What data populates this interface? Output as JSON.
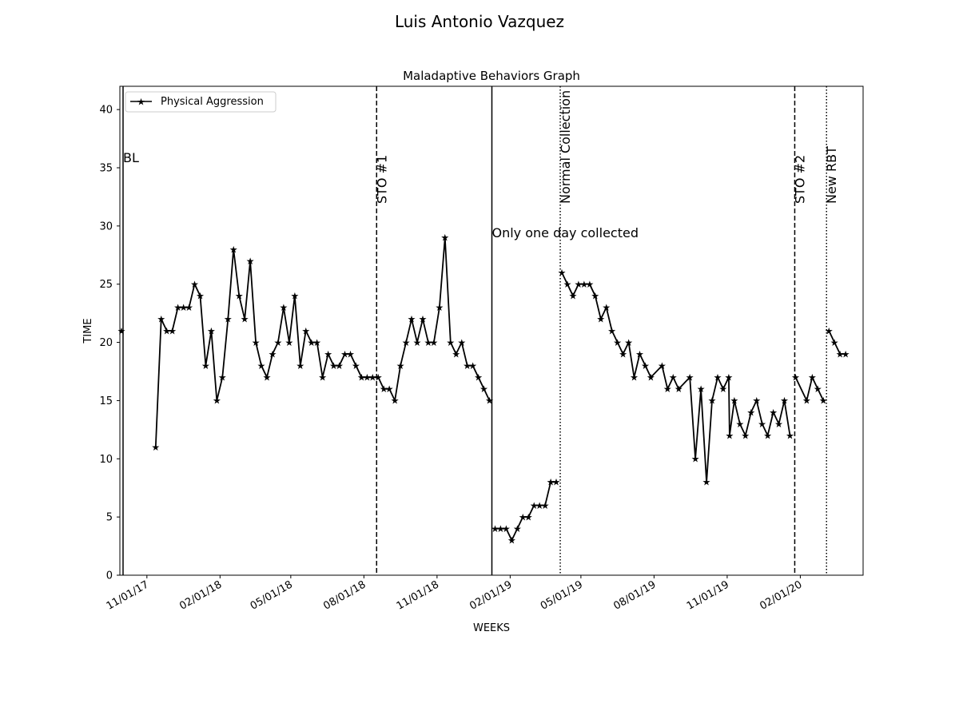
{
  "suptitle": "Luis Antonio  Vazquez",
  "chart_data": {
    "type": "line",
    "title": "Maladaptive Behaviors Graph",
    "xlabel": "WEEKS",
    "ylabel": "TIME",
    "x_axis_type": "date",
    "xlim": [
      "2017-09-28",
      "2020-04-20"
    ],
    "ylim": [
      0,
      42
    ],
    "y_ticks": [
      0,
      5,
      10,
      15,
      20,
      25,
      30,
      35,
      40
    ],
    "x_ticks": [
      {
        "date": "2017-11-01",
        "label": "11/01/17"
      },
      {
        "date": "2018-02-01",
        "label": "02/01/18"
      },
      {
        "date": "2018-05-01",
        "label": "05/01/18"
      },
      {
        "date": "2018-08-01",
        "label": "08/01/18"
      },
      {
        "date": "2018-11-01",
        "label": "11/01/18"
      },
      {
        "date": "2019-02-01",
        "label": "02/01/19"
      },
      {
        "date": "2019-05-01",
        "label": "05/01/19"
      },
      {
        "date": "2019-08-01",
        "label": "08/01/19"
      },
      {
        "date": "2019-11-01",
        "label": "11/01/19"
      },
      {
        "date": "2020-02-01",
        "label": "02/01/20"
      }
    ],
    "grid": false,
    "legend_position": "upper left",
    "series": [
      {
        "name": "Physical Aggression",
        "color": "#000000",
        "marker": "star",
        "segments": [
          [
            [
              "2017-09-30",
              21
            ]
          ],
          [
            [
              "2017-11-12",
              11
            ],
            [
              "2017-11-19",
              22
            ],
            [
              "2017-11-26",
              21
            ],
            [
              "2017-12-03",
              21
            ],
            [
              "2017-12-10",
              23
            ],
            [
              "2017-12-17",
              23
            ],
            [
              "2017-12-24",
              23
            ],
            [
              "2017-12-31",
              25
            ],
            [
              "2018-01-07",
              24
            ],
            [
              "2018-01-14",
              18
            ],
            [
              "2018-01-21",
              21
            ],
            [
              "2018-01-28",
              15
            ],
            [
              "2018-02-04",
              17
            ],
            [
              "2018-02-11",
              22
            ],
            [
              "2018-02-18",
              28
            ],
            [
              "2018-02-25",
              24
            ],
            [
              "2018-03-04",
              22
            ],
            [
              "2018-03-11",
              27
            ],
            [
              "2018-03-18",
              20
            ],
            [
              "2018-03-25",
              18
            ],
            [
              "2018-04-01",
              17
            ],
            [
              "2018-04-08",
              19
            ],
            [
              "2018-04-15",
              20
            ],
            [
              "2018-04-22",
              23
            ],
            [
              "2018-04-29",
              20
            ],
            [
              "2018-05-06",
              24
            ],
            [
              "2018-05-13",
              18
            ],
            [
              "2018-05-20",
              21
            ],
            [
              "2018-05-27",
              20
            ],
            [
              "2018-06-03",
              20
            ],
            [
              "2018-06-10",
              17
            ],
            [
              "2018-06-17",
              19
            ],
            [
              "2018-06-24",
              18
            ],
            [
              "2018-07-01",
              18
            ],
            [
              "2018-07-08",
              19
            ],
            [
              "2018-07-15",
              19
            ],
            [
              "2018-07-22",
              18
            ],
            [
              "2018-07-29",
              17
            ],
            [
              "2018-08-05",
              17
            ],
            [
              "2018-08-12",
              17
            ],
            [
              "2018-08-19",
              17
            ],
            [
              "2018-08-26",
              16
            ],
            [
              "2018-09-02",
              16
            ],
            [
              "2018-09-09",
              15
            ],
            [
              "2018-09-16",
              18
            ],
            [
              "2018-09-23",
              20
            ],
            [
              "2018-09-30",
              22
            ],
            [
              "2018-10-07",
              20
            ],
            [
              "2018-10-14",
              22
            ],
            [
              "2018-10-21",
              20
            ],
            [
              "2018-10-28",
              20
            ],
            [
              "2018-11-04",
              23
            ],
            [
              "2018-11-11",
              29
            ],
            [
              "2018-11-18",
              20
            ],
            [
              "2018-11-25",
              19
            ],
            [
              "2018-12-02",
              20
            ],
            [
              "2018-12-09",
              18
            ],
            [
              "2018-12-16",
              18
            ],
            [
              "2018-12-23",
              17
            ],
            [
              "2018-12-30",
              16
            ],
            [
              "2019-01-06",
              15
            ]
          ],
          [
            [
              "2019-01-13",
              4
            ],
            [
              "2019-01-20",
              4
            ],
            [
              "2019-01-27",
              4
            ],
            [
              "2019-02-03",
              3
            ],
            [
              "2019-02-10",
              4
            ],
            [
              "2019-02-17",
              5
            ],
            [
              "2019-02-24",
              5
            ],
            [
              "2019-03-03",
              6
            ],
            [
              "2019-03-10",
              6
            ],
            [
              "2019-03-17",
              6
            ],
            [
              "2019-03-24",
              8
            ],
            [
              "2019-03-31",
              8
            ]
          ],
          [
            [
              "2019-04-07",
              26
            ],
            [
              "2019-04-14",
              25
            ],
            [
              "2019-04-21",
              24
            ],
            [
              "2019-04-28",
              25
            ],
            [
              "2019-05-05",
              25
            ],
            [
              "2019-05-12",
              25
            ],
            [
              "2019-05-19",
              24
            ],
            [
              "2019-05-26",
              22
            ],
            [
              "2019-06-02",
              23
            ],
            [
              "2019-06-09",
              21
            ],
            [
              "2019-06-16",
              20
            ],
            [
              "2019-06-23",
              19
            ],
            [
              "2019-06-30",
              20
            ],
            [
              "2019-07-07",
              17
            ],
            [
              "2019-07-14",
              19
            ],
            [
              "2019-07-21",
              18
            ],
            [
              "2019-07-28",
              17
            ],
            [
              "2019-08-11",
              18
            ],
            [
              "2019-08-18",
              16
            ],
            [
              "2019-08-25",
              17
            ],
            [
              "2019-09-01",
              16
            ],
            [
              "2019-09-15",
              17
            ],
            [
              "2019-09-22",
              10
            ],
            [
              "2019-09-29",
              16
            ],
            [
              "2019-10-06",
              8
            ],
            [
              "2019-10-13",
              15
            ],
            [
              "2019-10-20",
              17
            ],
            [
              "2019-10-27",
              16
            ],
            [
              "2019-11-03",
              17
            ],
            [
              "2019-11-04",
              12
            ],
            [
              "2019-11-10",
              15
            ],
            [
              "2019-11-17",
              13
            ],
            [
              "2019-11-24",
              12
            ],
            [
              "2019-12-01",
              14
            ],
            [
              "2019-12-08",
              15
            ],
            [
              "2019-12-15",
              13
            ],
            [
              "2019-12-22",
              12
            ],
            [
              "2019-12-29",
              14
            ],
            [
              "2020-01-05",
              13
            ],
            [
              "2020-01-12",
              15
            ],
            [
              "2020-01-19",
              12
            ]
          ],
          [
            [
              "2020-01-26",
              17
            ],
            [
              "2020-02-09",
              15
            ],
            [
              "2020-02-16",
              17
            ],
            [
              "2020-02-23",
              16
            ],
            [
              "2020-03-01",
              15
            ]
          ],
          [
            [
              "2020-03-08",
              21
            ],
            [
              "2020-03-15",
              20
            ],
            [
              "2020-03-22",
              19
            ],
            [
              "2020-03-29",
              19
            ]
          ]
        ]
      }
    ],
    "phase_lines": [
      {
        "date": "2017-10-02",
        "style": "solid",
        "label": "BL",
        "label_orientation": "horizontal"
      },
      {
        "date": "2018-08-17",
        "style": "dashed",
        "label": "STO #1",
        "label_orientation": "vertical"
      },
      {
        "date": "2019-01-09",
        "style": "solid",
        "label": "Only one day collected",
        "label_orientation": "horizontal"
      },
      {
        "date": "2019-04-05",
        "style": "dotted",
        "label": "Normal Collection",
        "label_orientation": "vertical"
      },
      {
        "date": "2020-01-25",
        "style": "dashed",
        "label": "STO #2",
        "label_orientation": "vertical"
      },
      {
        "date": "2020-03-05",
        "style": "dotted",
        "label": "New RBT",
        "label_orientation": "vertical"
      }
    ]
  }
}
